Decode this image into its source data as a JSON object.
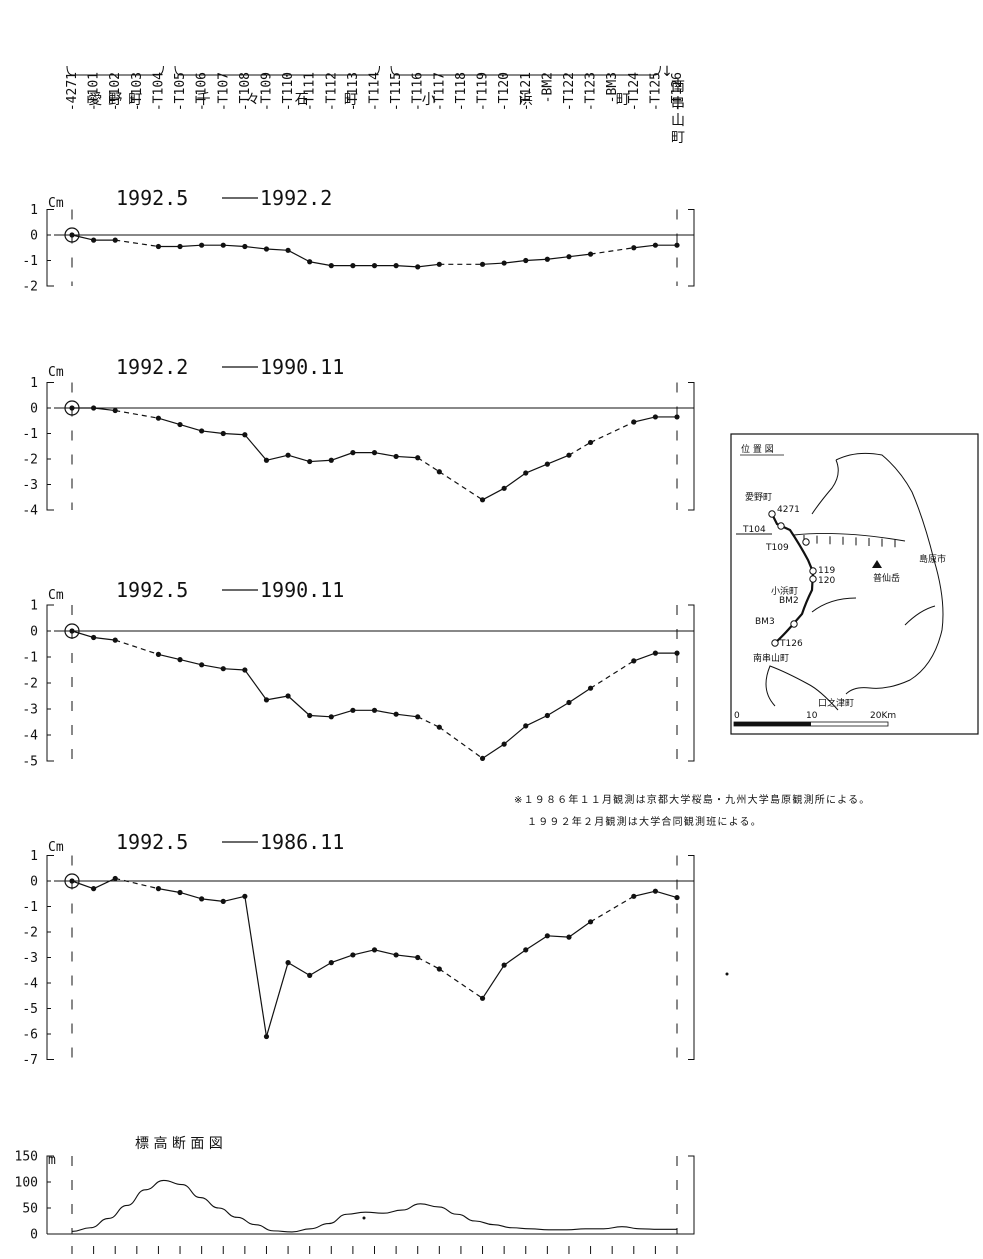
{
  "stations": [
    "4271",
    "T101",
    "T102",
    "T103",
    "T104",
    "T105",
    "T106",
    "T107",
    "T108",
    "T109",
    "T110",
    "T111",
    "T112",
    "T113",
    "T114",
    "T115",
    "T116",
    "T117",
    "T118",
    "T119",
    "T120",
    "T121",
    "BM2",
    "T122",
    "T123",
    "BM3",
    "T124",
    "T125",
    "T126"
  ],
  "towns": [
    {
      "name": "愛野町",
      "from": 0,
      "to": 4
    },
    {
      "name": "千々石町",
      "from": 5,
      "to": 14
    },
    {
      "name": "小浜町",
      "from": 15,
      "to": 27
    },
    {
      "name": "南串山町",
      "from": 28,
      "to": 28
    }
  ],
  "chart_data": [
    {
      "type": "line",
      "title_start": "1992.5",
      "title_end": "1992.2",
      "ylabel": "Cm",
      "ylim": [
        -2,
        1
      ],
      "yticks": [
        1,
        0,
        -1,
        -2
      ],
      "values": [
        0,
        -0.2,
        -0.2,
        null,
        -0.45,
        -0.45,
        -0.4,
        -0.4,
        -0.45,
        -0.55,
        -0.6,
        -1.05,
        -1.2,
        -1.2,
        -1.2,
        -1.2,
        -1.25,
        -1.15,
        null,
        -1.15,
        -1.1,
        -1.0,
        -0.95,
        -0.85,
        -0.75,
        null,
        -0.5,
        -0.4,
        -0.4
      ],
      "dashed_segments": [
        [
          2,
          4
        ],
        [
          17,
          19
        ],
        [
          24,
          26
        ]
      ]
    },
    {
      "type": "line",
      "title_start": "1992.2",
      "title_end": "1990.11",
      "ylabel": "Cm",
      "ylim": [
        -4,
        1
      ],
      "yticks": [
        1,
        0,
        -1,
        -2,
        -3,
        -4
      ],
      "values": [
        0,
        0,
        -0.1,
        null,
        -0.4,
        -0.65,
        -0.9,
        -1.0,
        -1.05,
        -2.05,
        -1.85,
        -2.1,
        -2.05,
        -1.75,
        -1.75,
        -1.9,
        -1.95,
        -2.5,
        null,
        -3.6,
        -3.15,
        -2.55,
        -2.2,
        -1.85,
        -1.35,
        null,
        -0.55,
        -0.35,
        -0.35
      ],
      "dashed_segments": [
        [
          2,
          4
        ],
        [
          16,
          19
        ],
        [
          23,
          26
        ]
      ]
    },
    {
      "type": "line",
      "title_start": "1992.5",
      "title_end": "1990.11",
      "ylabel": "Cm",
      "ylim": [
        -5,
        1
      ],
      "yticks": [
        1,
        0,
        -1,
        -2,
        -3,
        -4,
        -5
      ],
      "values": [
        0,
        -0.25,
        -0.35,
        null,
        -0.9,
        -1.1,
        -1.3,
        -1.45,
        -1.5,
        -2.65,
        -2.5,
        -3.25,
        -3.3,
        -3.05,
        -3.05,
        -3.2,
        -3.3,
        -3.7,
        null,
        -4.9,
        -4.35,
        -3.65,
        -3.25,
        -2.75,
        -2.2,
        null,
        -1.15,
        -0.85,
        -0.85
      ],
      "dashed_segments": [
        [
          2,
          4
        ],
        [
          16,
          19
        ],
        [
          24,
          26
        ]
      ]
    },
    {
      "type": "line",
      "title_start": "1992.5",
      "title_end": "1986.11",
      "ylabel": "Cm",
      "ylim": [
        -7,
        1
      ],
      "yticks": [
        1,
        0,
        -1,
        -2,
        -3,
        -4,
        -5,
        -6,
        -7
      ],
      "values": [
        0,
        -0.3,
        0.1,
        null,
        -0.3,
        -0.45,
        -0.7,
        -0.8,
        -0.6,
        -6.1,
        -3.2,
        -3.7,
        -3.2,
        -2.9,
        -2.7,
        -2.9,
        -3.0,
        -3.45,
        null,
        -4.6,
        -3.3,
        -2.7,
        -2.15,
        -2.2,
        -1.6,
        null,
        -0.6,
        -0.4,
        -0.65
      ],
      "dashed_segments": [
        [
          2,
          4
        ],
        [
          16,
          19
        ],
        [
          24,
          26
        ]
      ]
    },
    {
      "type": "area",
      "title": "標 高 断 面 図",
      "ylabel": "m",
      "ylim": [
        0,
        150
      ],
      "yticks": [
        150,
        100,
        50,
        0
      ],
      "profile": [
        5,
        12,
        30,
        55,
        85,
        103,
        95,
        70,
        50,
        32,
        18,
        6,
        4,
        10,
        20,
        38,
        42,
        40,
        46,
        58,
        52,
        38,
        25,
        18,
        12,
        10,
        8,
        8,
        10,
        10,
        14,
        10,
        9,
        9
      ]
    }
  ],
  "inset_map": {
    "title": "位 置 図",
    "labels": {
      "aino": "愛野町",
      "p4271": "4271",
      "t104": "T104",
      "t109": "T109",
      "p119": "119",
      "p120": "120",
      "obama": "小浜町",
      "bm2": "BM2",
      "bm3": "BM3",
      "t126": "T126",
      "minami": "南串山町",
      "fugen": "普仙岳",
      "shimabara": "島原市",
      "kuchi": "口之津町"
    },
    "scale": [
      "0",
      "10",
      "20Km"
    ]
  },
  "notes": [
    "※１９８６年１１月観測は京都大学桜島・九州大学島原観測所による。",
    "１９９２年２月観測は大学合同観測班による。"
  ]
}
